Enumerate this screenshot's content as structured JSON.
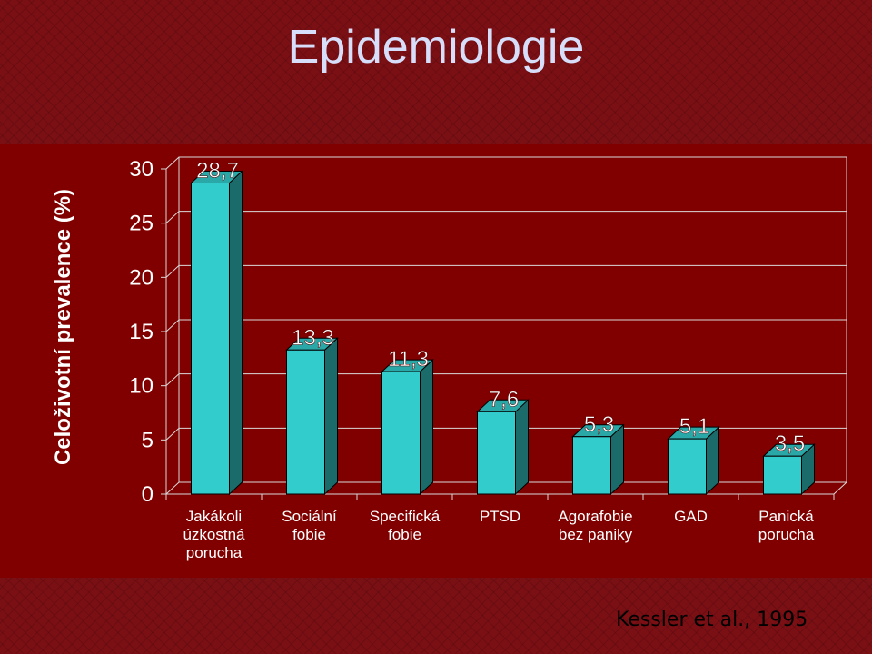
{
  "slide": {
    "title": "Epidemiologie",
    "credit": "Kessler et al., 1995"
  },
  "colors": {
    "background": "#7a0f14",
    "plot_area": "#800000",
    "bar_front": "#33cccc",
    "bar_side": "#1c6b6b",
    "bar_top": "#2aa7a7",
    "text": "#ffffff",
    "title": "#d7defa"
  },
  "chart_data": {
    "type": "bar",
    "ylabel": "Celoživotní prevalence (%)",
    "categories": [
      [
        "Jakákoli",
        "úzkostná",
        "porucha"
      ],
      [
        "Sociální",
        "fobie"
      ],
      [
        "Specifická",
        "fobie"
      ],
      [
        "PTSD"
      ],
      [
        "Agorafobie",
        "bez paniky"
      ],
      [
        "GAD"
      ],
      [
        "Panická",
        "porucha"
      ]
    ],
    "values": [
      28.7,
      13.3,
      11.3,
      7.6,
      5.3,
      5.1,
      3.5
    ],
    "value_labels": [
      "28,7",
      "13,3",
      "11,3",
      "7,6",
      "5,3",
      "5,1",
      "3,5"
    ],
    "yticks": [
      0,
      5,
      10,
      15,
      20,
      25,
      30
    ],
    "ylim": [
      0,
      30
    ],
    "grid": true,
    "style": "3d-column"
  }
}
